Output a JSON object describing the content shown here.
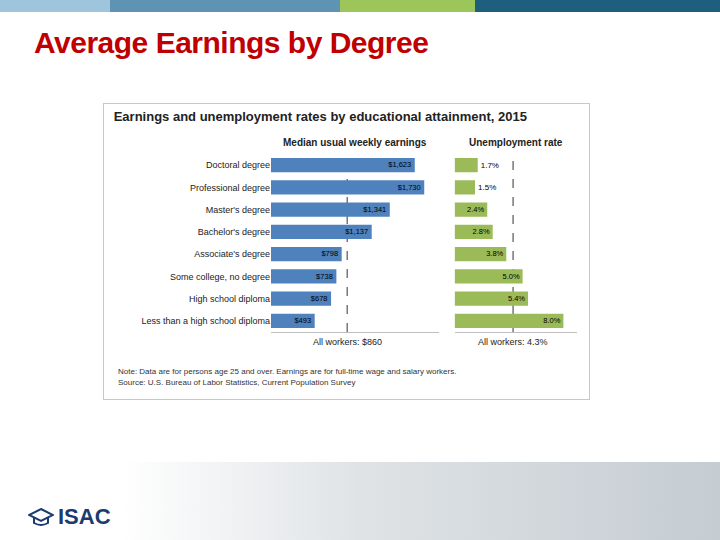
{
  "slide": {
    "title": "Average Earnings by Degree",
    "logo": "ISAC"
  },
  "figure": {
    "title": "Earnings and unemployment rates by educational attainment, 2015",
    "note": "Note: Data are for persons age 25 and over. Earnings are for full-time wage and salary workers.",
    "source": "Source: U.S. Bureau of Labor Statistics, Current Population Survey"
  },
  "chart_data": [
    {
      "type": "bar",
      "orientation": "horizontal",
      "title": "Median usual weekly earnings",
      "categories": [
        "Doctoral degree",
        "Professional degree",
        "Master's degree",
        "Bachelor's degree",
        "Associate's degree",
        "Some college, no degree",
        "High school diploma",
        "Less than a high school diploma"
      ],
      "values": [
        1623,
        1730,
        1341,
        1137,
        798,
        738,
        678,
        493
      ],
      "value_labels": [
        "$1,623",
        "$1,730",
        "$1,341",
        "$1,137",
        "$798",
        "$738",
        "$678",
        "$493"
      ],
      "data_labels": true,
      "color": "#4f81bd",
      "xlim": [
        0,
        1900
      ],
      "xticks": [],
      "tick_labels": "y",
      "reference_line": {
        "value": 860,
        "label": "All workers: $860"
      }
    },
    {
      "type": "bar",
      "orientation": "horizontal",
      "title": "Unemployment rate",
      "categories": [
        "Doctoral degree",
        "Professional degree",
        "Master's degree",
        "Bachelor's degree",
        "Associate's degree",
        "Some college, no degree",
        "High school diploma",
        "Less than a high school diploma"
      ],
      "values": [
        1.7,
        1.5,
        2.4,
        2.8,
        3.8,
        5.0,
        5.4,
        8.0
      ],
      "value_labels": [
        "1.7%",
        "1.5%",
        "2.4%",
        "2.8%",
        "3.8%",
        "5.0%",
        "5.4%",
        "8.0%"
      ],
      "data_labels": true,
      "color": "#9bbb59",
      "xlim": [
        0,
        9
      ],
      "xticks": [],
      "tick_labels": false,
      "reference_line": {
        "value": 4.3,
        "label": "All workers: 4.3%"
      }
    }
  ]
}
